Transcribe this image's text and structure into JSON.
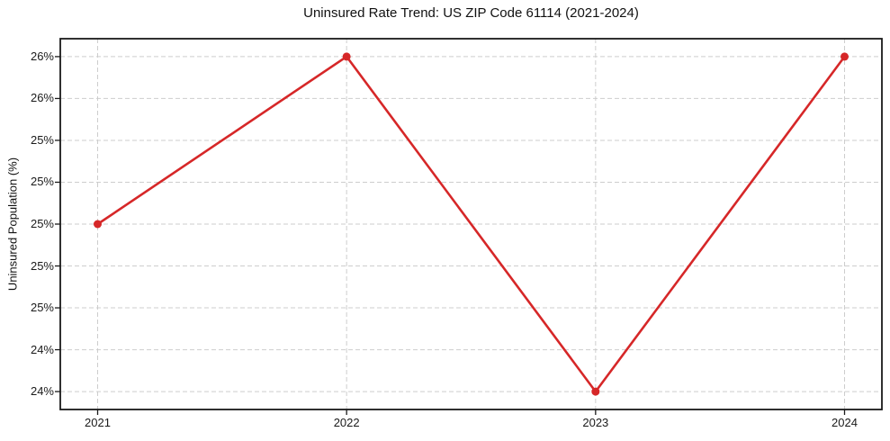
{
  "chart_data": {
    "type": "line",
    "title": "Uninsured Rate Trend: US ZIP Code 61114 (2021-2024)",
    "xlabel": "",
    "ylabel": "Uninsured Population (%)",
    "x": [
      2021,
      2022,
      2023,
      2024
    ],
    "y": [
      25.0,
      26.0,
      24.0,
      26.0
    ],
    "x_ticks": [
      {
        "value": 2021,
        "label": "2021"
      },
      {
        "value": 2022,
        "label": "2022"
      },
      {
        "value": 2023,
        "label": "2023"
      },
      {
        "value": 2024,
        "label": "2024"
      }
    ],
    "y_ticks": [
      {
        "value": 26.0,
        "label": "26%"
      },
      {
        "value": 25.75,
        "label": "26%"
      },
      {
        "value": 25.5,
        "label": "25%"
      },
      {
        "value": 25.25,
        "label": "25%"
      },
      {
        "value": 25.0,
        "label": "25%"
      },
      {
        "value": 24.75,
        "label": "25%"
      },
      {
        "value": 24.5,
        "label": "25%"
      },
      {
        "value": 24.25,
        "label": "24%"
      },
      {
        "value": 24.0,
        "label": "24%"
      }
    ],
    "xlim": [
      2020.85,
      2024.15
    ],
    "ylim": [
      23.893,
      26.107
    ],
    "grid": true,
    "legend_position": "none",
    "line_color": "#d62728",
    "marker": "circle",
    "grid_color": "#cdcdcd",
    "axis_color": "#1a1a1a",
    "background_color": "#ffffff"
  }
}
